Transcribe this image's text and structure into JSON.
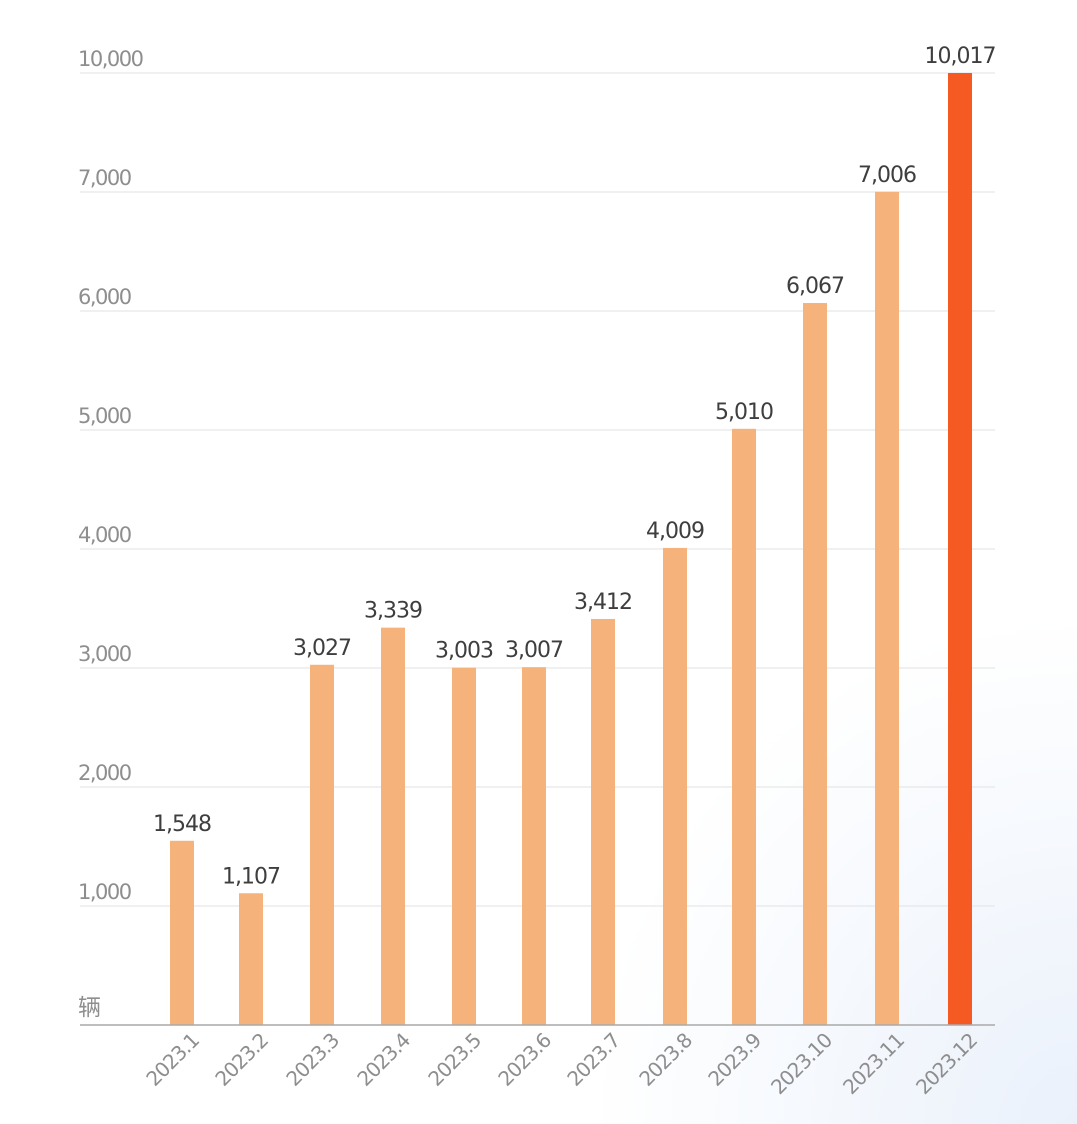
{
  "chart_data": {
    "type": "bar",
    "unit": "辆",
    "categories": [
      "2023.1",
      "2023.2",
      "2023.3",
      "2023.4",
      "2023.5",
      "2023.6",
      "2023.7",
      "2023.8",
      "2023.9",
      "2023.10",
      "2023.11",
      "2023.12"
    ],
    "values": [
      1548,
      1107,
      3027,
      3339,
      3003,
      3007,
      3412,
      4009,
      5010,
      6067,
      7006,
      10017
    ],
    "value_labels": [
      "1,548",
      "1,107",
      "3,027",
      "3,339",
      "3,003",
      "3,007",
      "3,412",
      "4,009",
      "5,010",
      "6,067",
      "7,006",
      "10,017"
    ],
    "y_ticks": [
      1000,
      2000,
      3000,
      4000,
      5000,
      6000,
      7000,
      10000
    ],
    "y_tick_labels": [
      "1,000",
      "2,000",
      "3,000",
      "4,000",
      "5,000",
      "6,000",
      "7,000",
      "10,000"
    ],
    "y_axis_break": "axis jumps from 7,000 to 10,000 with equal spacing",
    "grid": true,
    "colors": {
      "bar": "#f5b27b",
      "highlight_bar": "#f45a22",
      "grid": "#e2e2e2",
      "axis": "#a9a9a9"
    },
    "highlight_index": 11
  }
}
